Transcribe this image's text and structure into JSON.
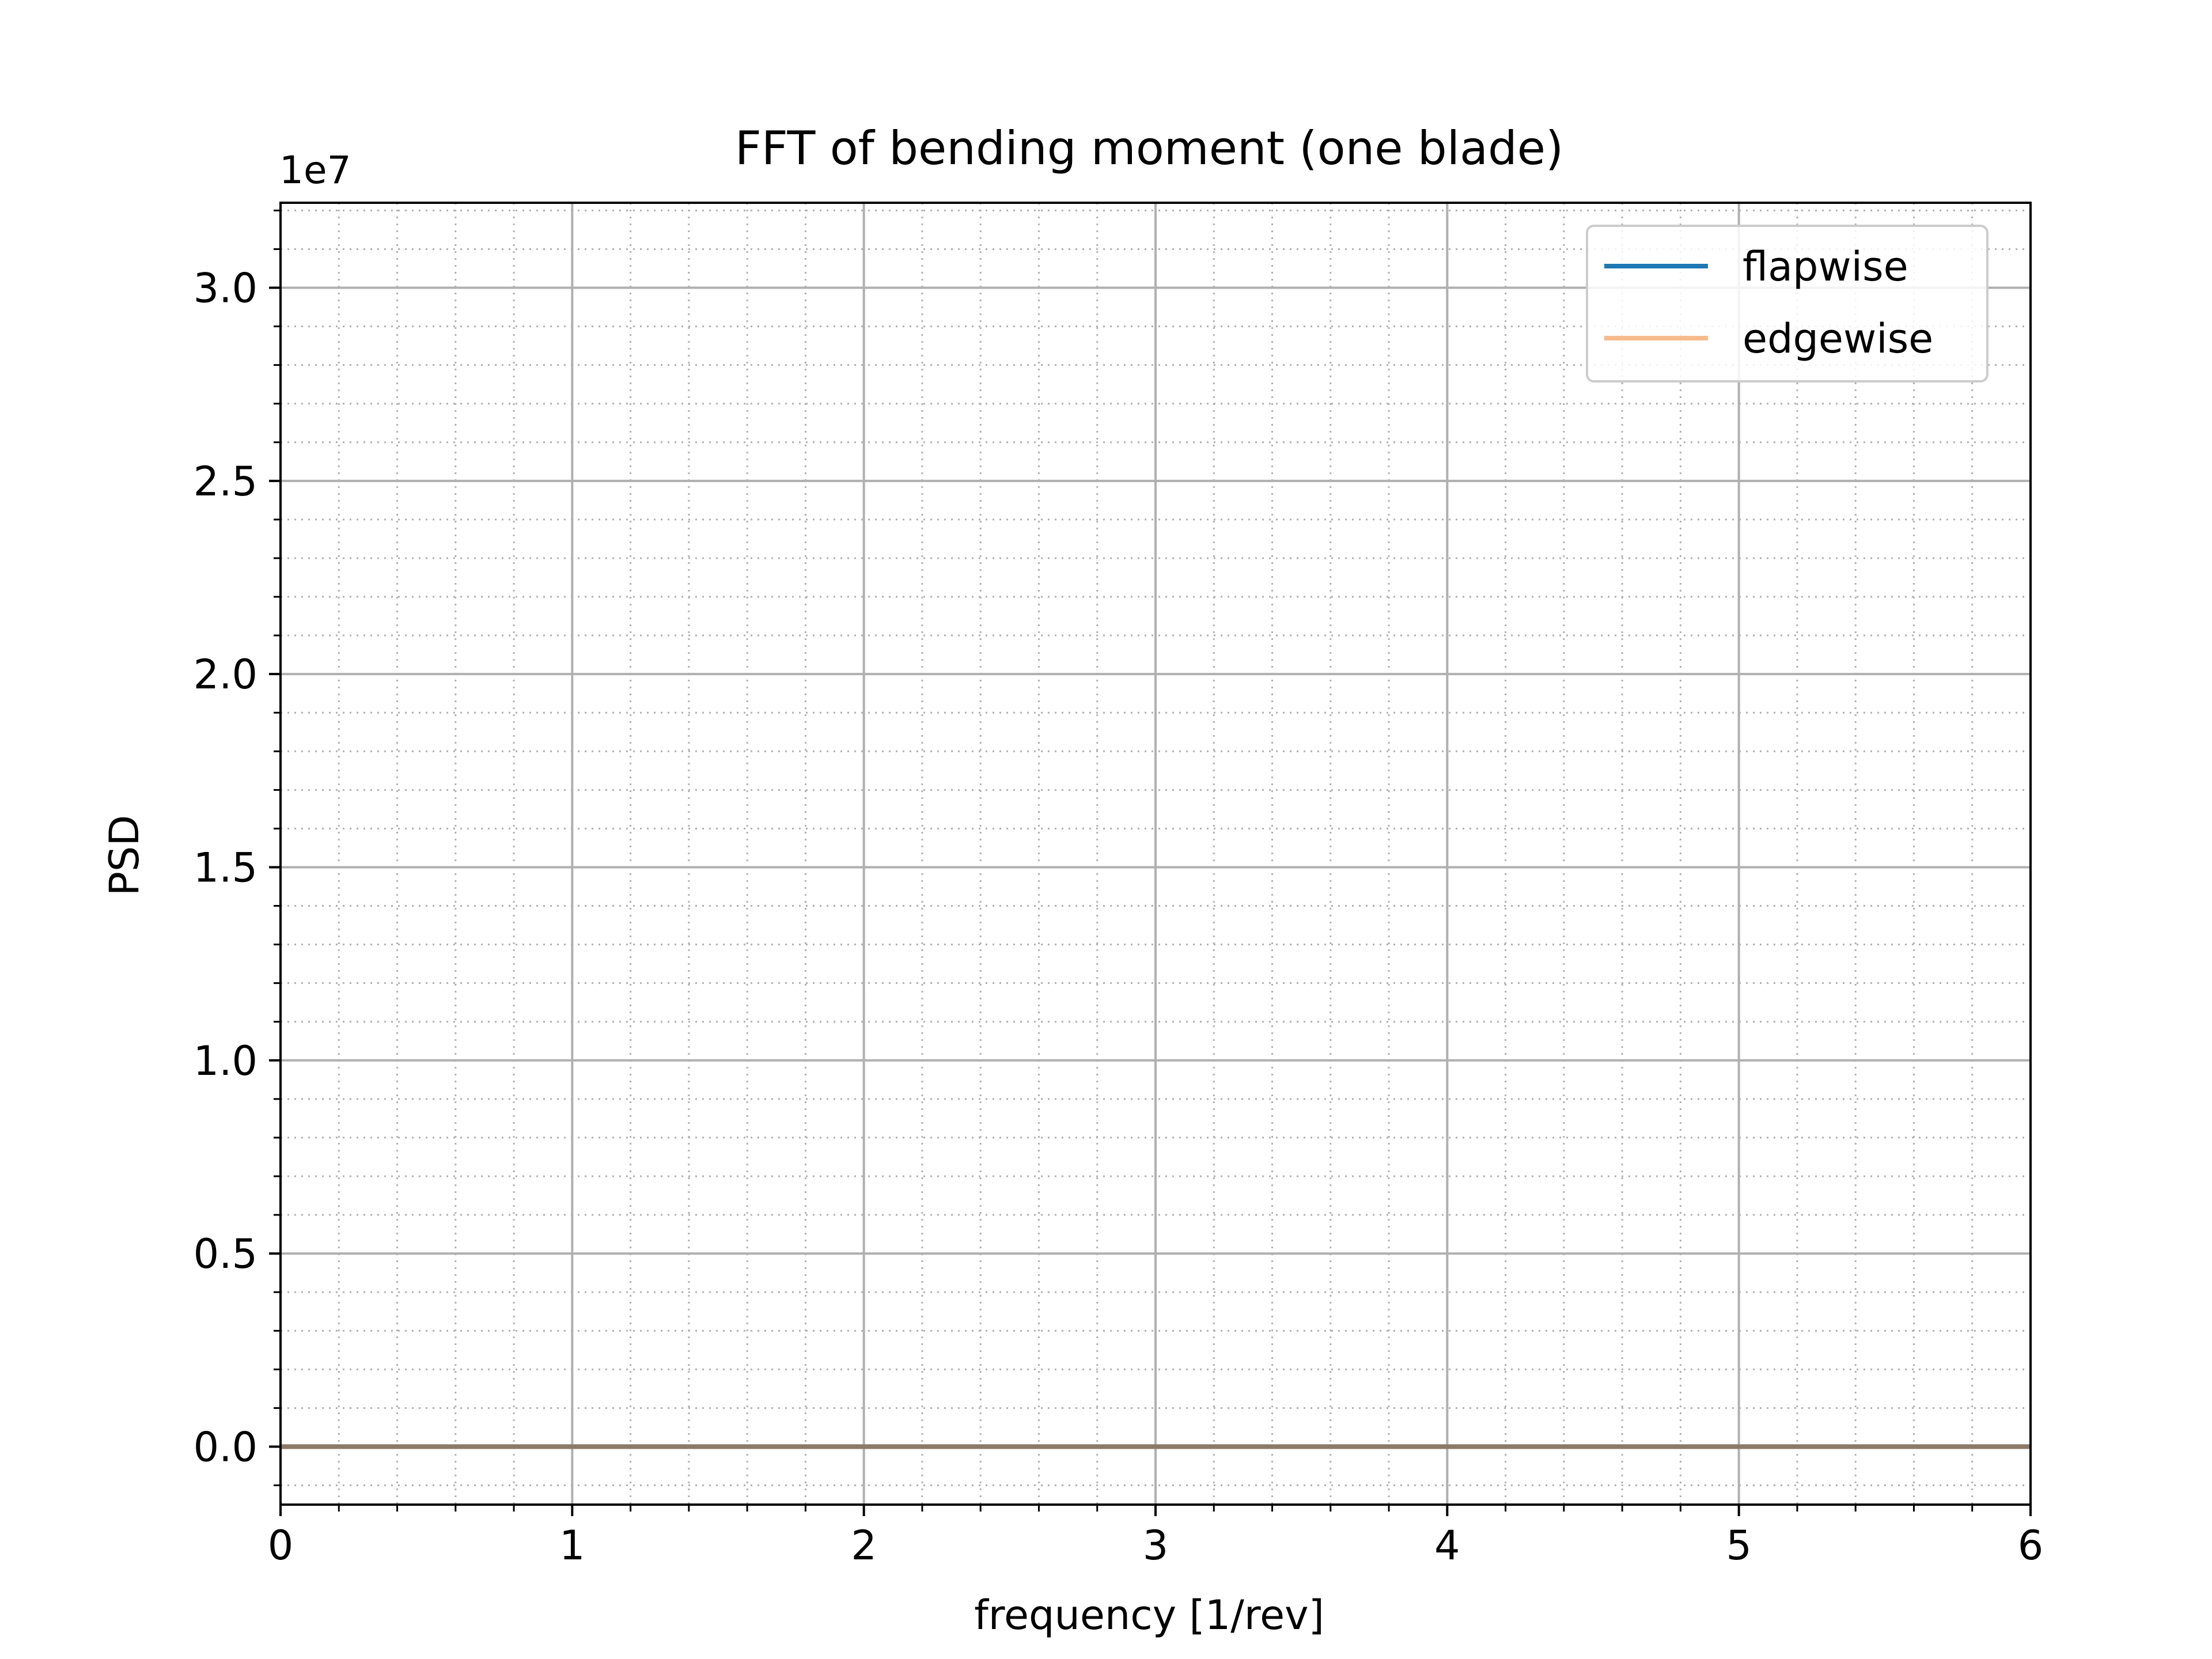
{
  "chart_data": {
    "type": "line",
    "title": "FFT of bending moment (one blade)",
    "xlabel": "frequency [1/rev]",
    "ylabel": "PSD",
    "y_offset_label": "1e7",
    "xlim": [
      0,
      6
    ],
    "ylim": [
      -0.15,
      3.22
    ],
    "y_scale_factor": 10000000,
    "x_ticks": [
      0,
      1,
      2,
      3,
      4,
      5,
      6
    ],
    "x_tick_labels": [
      "0",
      "1",
      "2",
      "3",
      "4",
      "5",
      "6"
    ],
    "y_ticks": [
      0.0,
      0.5,
      1.0,
      1.5,
      2.0,
      2.5,
      3.0
    ],
    "y_tick_labels": [
      "0.0",
      "0.5",
      "1.0",
      "1.5",
      "2.0",
      "2.5",
      "3.0"
    ],
    "x_minor_step": 0.2,
    "y_minor_step": 0.1,
    "grid": true,
    "legend_position": "top-right",
    "series": [
      {
        "name": "flapwise",
        "color": "#1f77b4",
        "x": [
          0,
          6
        ],
        "y": [
          0,
          0
        ]
      },
      {
        "name": "edgewise",
        "color": "#f7bb8b",
        "x": [
          0,
          6
        ],
        "y": [
          0,
          0
        ]
      }
    ],
    "overlap_line_color": "#8c7a68"
  }
}
